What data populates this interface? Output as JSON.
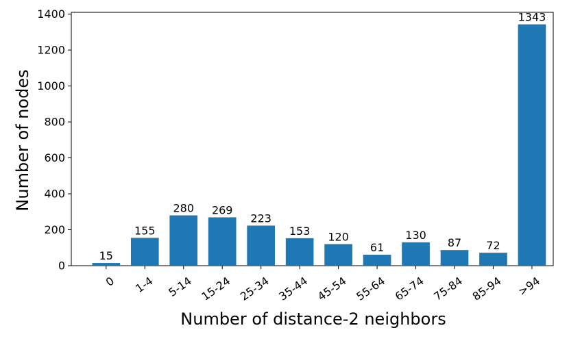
{
  "chart_data": {
    "type": "bar",
    "title": "",
    "xlabel": "Number of distance-2 neighbors",
    "ylabel": "Number of nodes",
    "categories": [
      "0",
      "1-4",
      "5-14",
      "15-24",
      "25-34",
      "35-44",
      "45-54",
      "55-64",
      "65-74",
      "75-84",
      "85-94",
      ">94"
    ],
    "values": [
      15,
      155,
      280,
      269,
      223,
      153,
      120,
      61,
      130,
      87,
      72,
      1343
    ],
    "data_labels": [
      "15",
      "155",
      "280",
      "269",
      "223",
      "153",
      "120",
      "61",
      "130",
      "87",
      "72",
      "1343"
    ],
    "ylim": [
      0,
      1400
    ],
    "yticks": [
      0,
      200,
      400,
      600,
      800,
      1000,
      1200,
      1400
    ],
    "ytick_labels": [
      "0",
      "200",
      "400",
      "600",
      "800",
      "1000",
      "1200",
      "1400"
    ],
    "grid": false,
    "legend": "none",
    "bar_color": "#1f77b4"
  }
}
